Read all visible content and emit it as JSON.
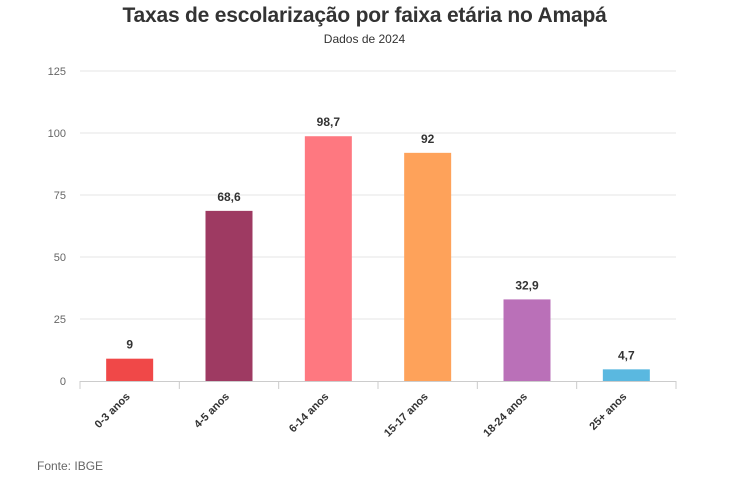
{
  "chart_data": {
    "type": "bar",
    "title": "Taxas de escolarização por faixa etária no Amapá",
    "subtitle": "Dados de 2024",
    "categories": [
      "0-3 anos",
      "4-5 anos",
      "6-14 anos",
      "15-17 anos",
      "18-24 anos",
      "25+ anos"
    ],
    "values": [
      9,
      68.6,
      98.7,
      92,
      32.9,
      4.7
    ],
    "value_labels": [
      "9",
      "68,6",
      "98,7",
      "92",
      "32,9",
      "4,7"
    ],
    "colors": [
      "#f04848",
      "#9e3a62",
      "#fe7880",
      "#fea25a",
      "#ba70b8",
      "#5ab8e0"
    ],
    "ylim": [
      0,
      125
    ],
    "yticks": [
      0,
      25,
      50,
      75,
      100,
      125
    ],
    "grid": true,
    "xlabel": "",
    "ylabel": "",
    "source": "Fonte: IBGE"
  }
}
